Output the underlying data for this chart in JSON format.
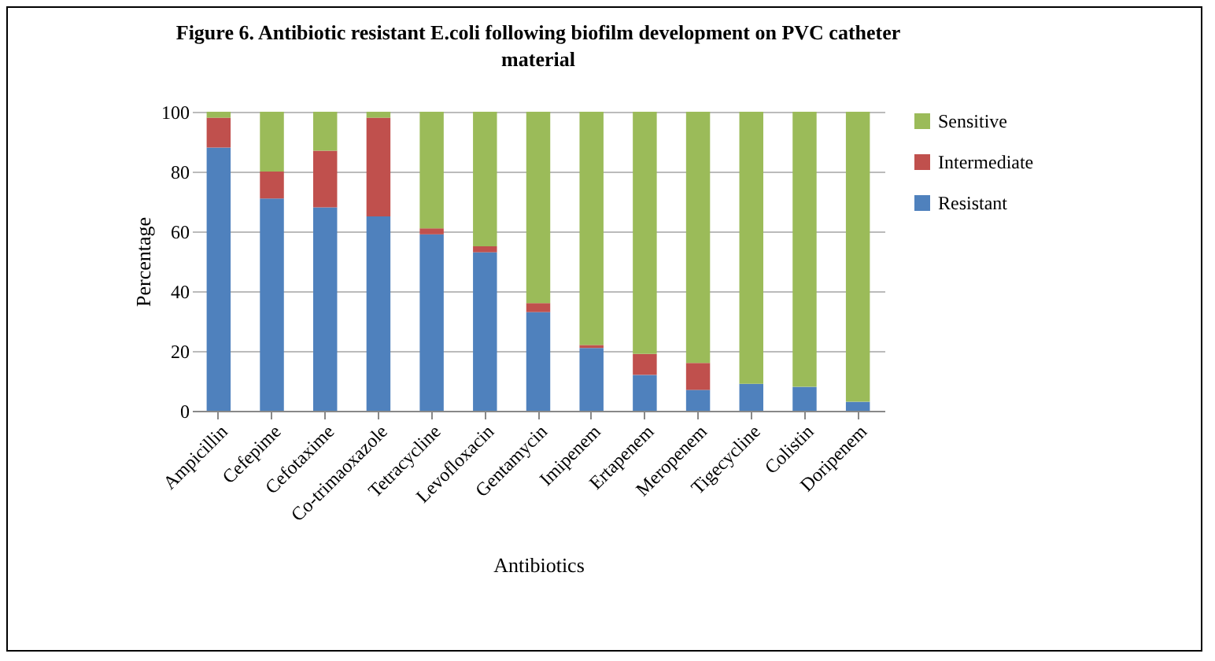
{
  "chart_data": {
    "type": "bar",
    "stacked": true,
    "title": "Figure 6. Antibiotic  resistant E.coli following  biofilm  development  on PVC catheter material",
    "xlabel": "Antibiotics",
    "ylabel": "Percentage",
    "categories": [
      "Ampicillin",
      "Cefepime",
      "Cefotaxime",
      "Co-trimaoxazole",
      "Tetracycline",
      "Levofloxacin",
      "Gentamycin",
      "Imipenem",
      "Ertapenem",
      "Meropenem",
      "Tigecycline",
      "Colistin",
      "Doripenem"
    ],
    "series": [
      {
        "name": "Resistant",
        "color": "#4f81bd",
        "values": [
          88,
          71,
          68,
          65,
          59,
          53,
          33,
          21,
          12,
          7,
          9,
          8,
          3
        ]
      },
      {
        "name": "Intermediate",
        "color": "#c0504d",
        "values": [
          10,
          9,
          19,
          33,
          2,
          2,
          3,
          1,
          7,
          9,
          0,
          0,
          0
        ]
      },
      {
        "name": "Sensitive",
        "color": "#9bbb59",
        "values": [
          2,
          20,
          13,
          2,
          39,
          45,
          64,
          78,
          81,
          84,
          91,
          92,
          97
        ]
      }
    ],
    "ylim": [
      0,
      100
    ],
    "yticks": [
      0,
      20,
      40,
      60,
      80,
      100
    ],
    "grid": "y",
    "legend": "right"
  }
}
